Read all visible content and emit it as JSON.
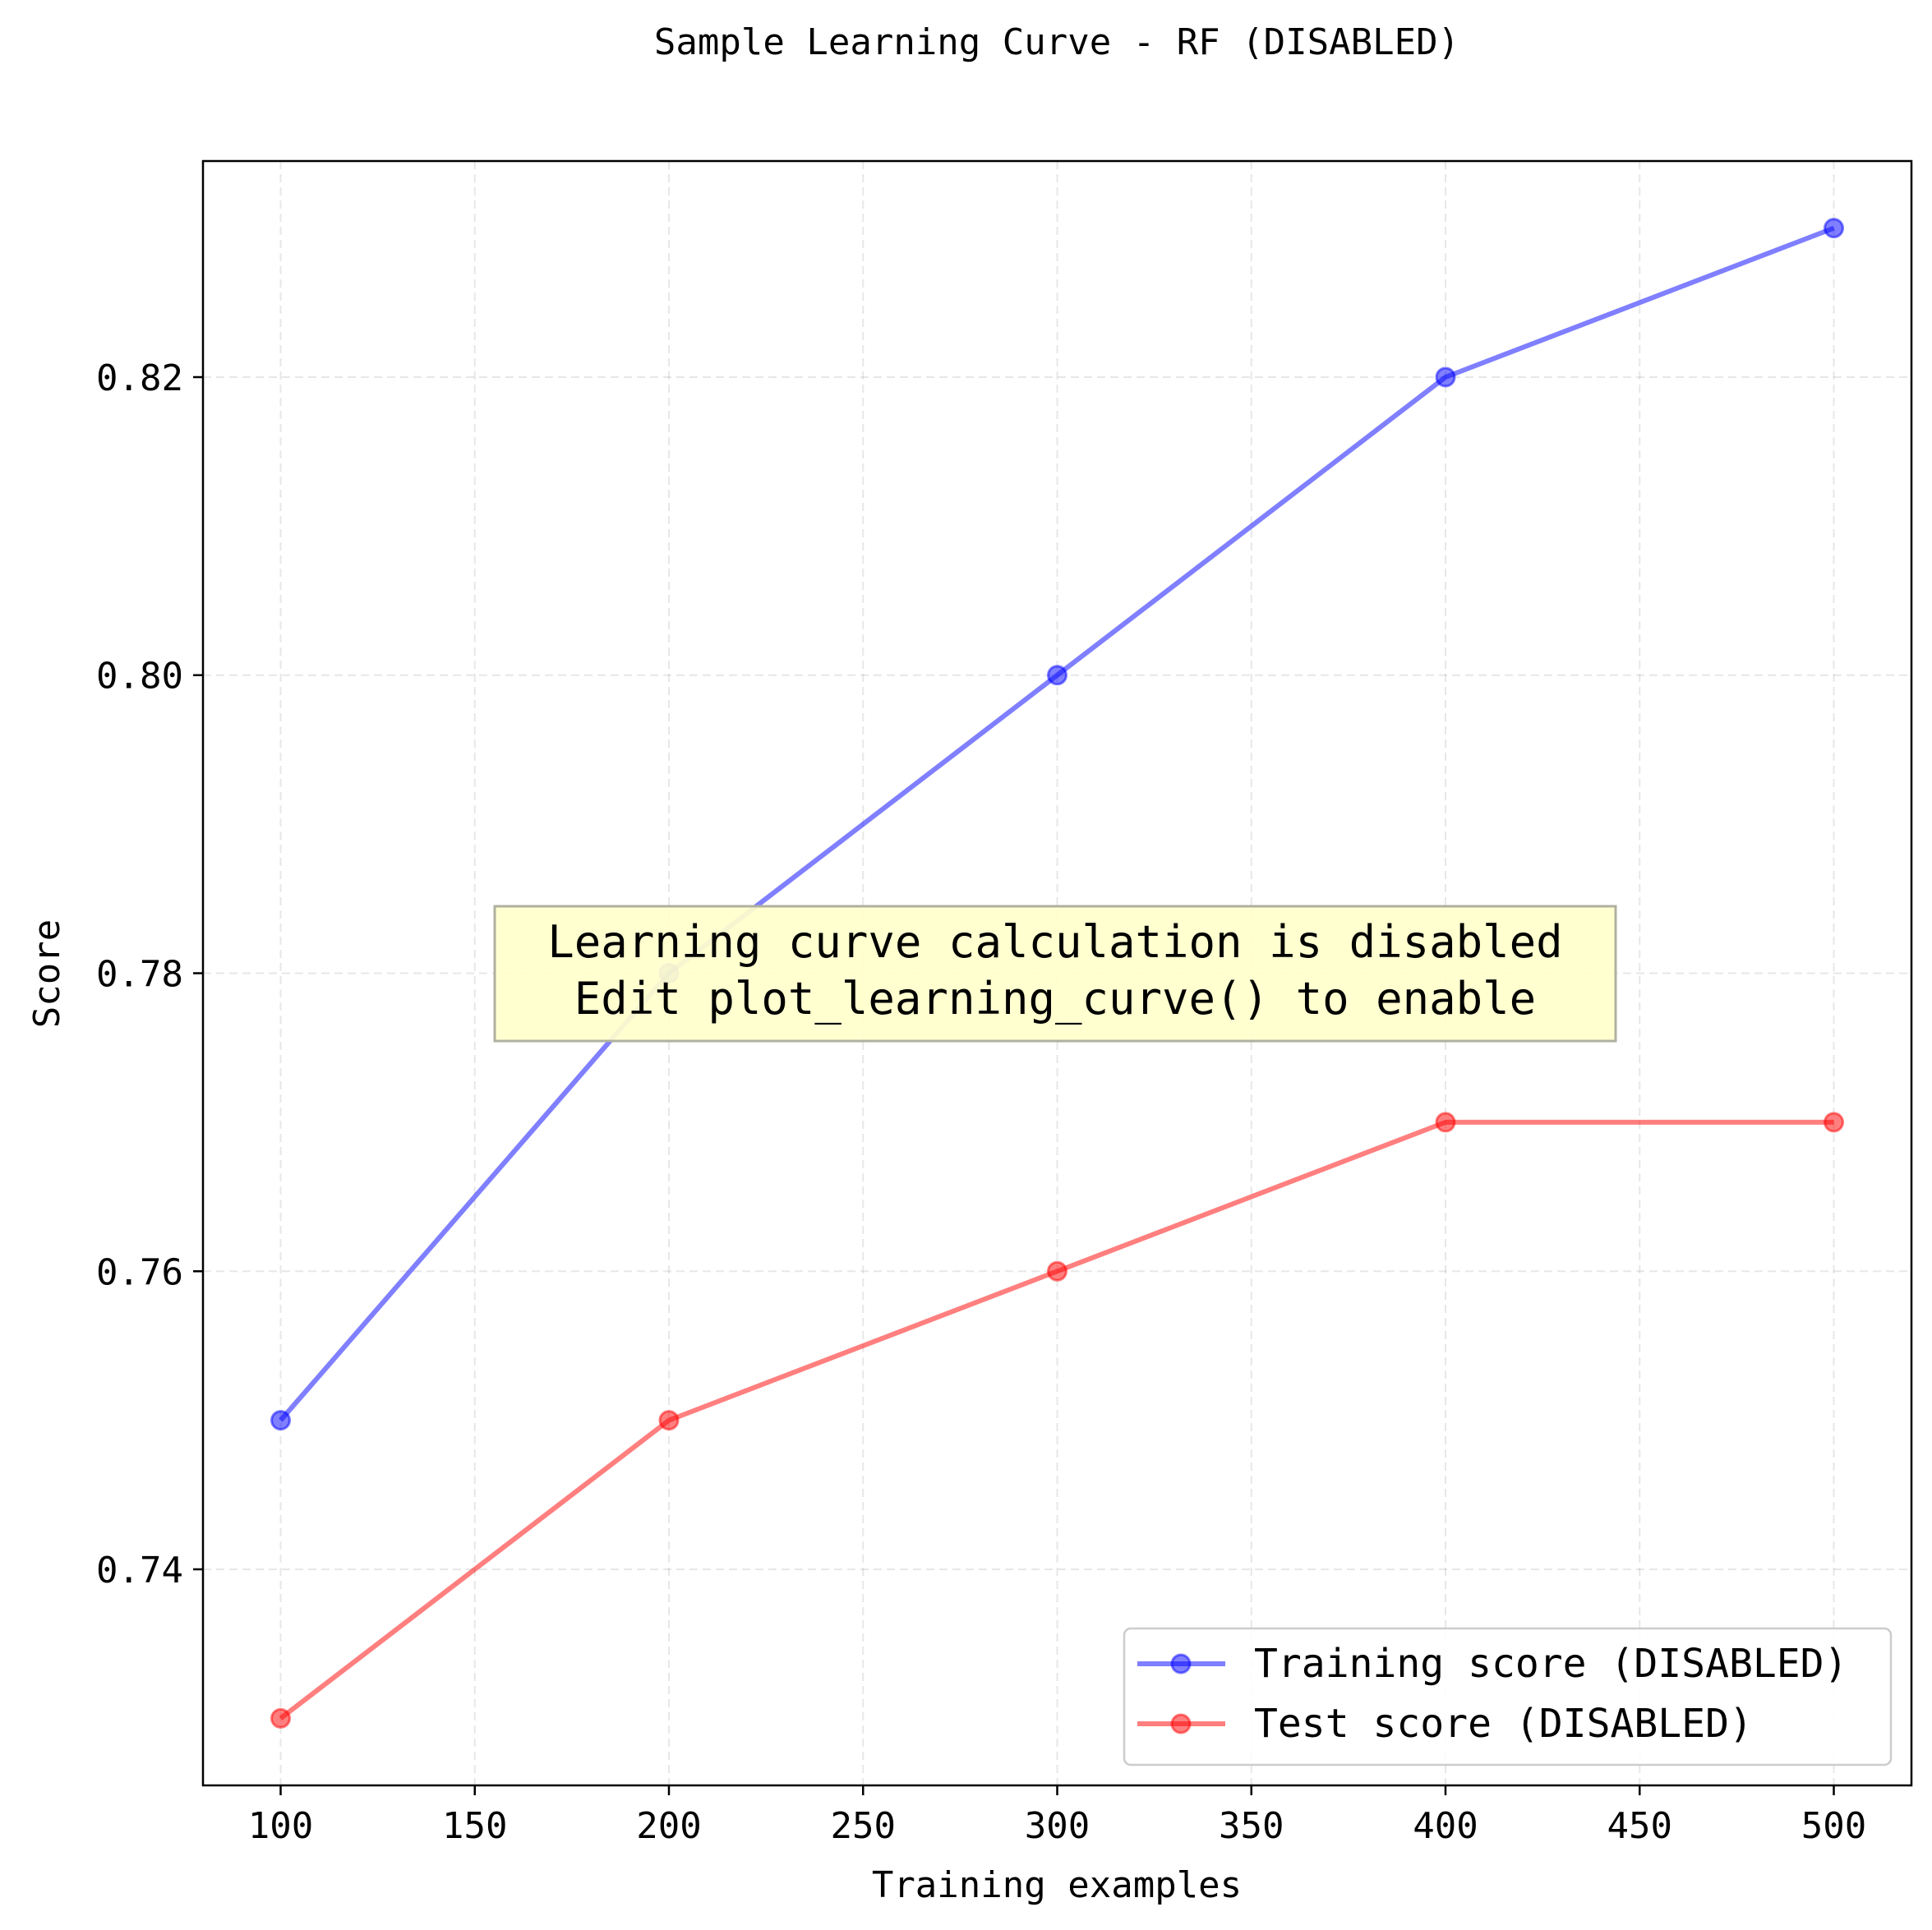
{
  "chart_data": {
    "type": "line",
    "title": "Sample Learning Curve - RF (DISABLED)",
    "xlabel": "Training examples",
    "ylabel": "Score",
    "x": [
      100,
      200,
      300,
      400,
      500
    ],
    "xlim": [
      80,
      520
    ],
    "ylim": [
      0.7255,
      0.8345
    ],
    "xticks": [
      100,
      150,
      200,
      250,
      300,
      350,
      400,
      450,
      500
    ],
    "xtick_labels": [
      "100",
      "150",
      "200",
      "250",
      "300",
      "350",
      "400",
      "450",
      "500"
    ],
    "yticks": [
      0.74,
      0.76,
      0.78,
      0.8,
      0.82
    ],
    "ytick_labels": [
      "0.74",
      "0.76",
      "0.78",
      "0.80",
      "0.82"
    ],
    "grid": true,
    "legend_position": "lower-right",
    "series": [
      {
        "name": "Training score (DISABLED)",
        "values": [
          0.75,
          0.78,
          0.8,
          0.82,
          0.83
        ],
        "color": "#0000ff"
      },
      {
        "name": "Test score (DISABLED)",
        "values": [
          0.73,
          0.75,
          0.76,
          0.77,
          0.77
        ],
        "color": "#ff0000"
      }
    ],
    "annotation": {
      "lines": [
        "Learning curve calculation is disabled",
        "Edit plot_learning_curve() to enable"
      ],
      "position": "center",
      "background": "#ffffcc"
    }
  }
}
